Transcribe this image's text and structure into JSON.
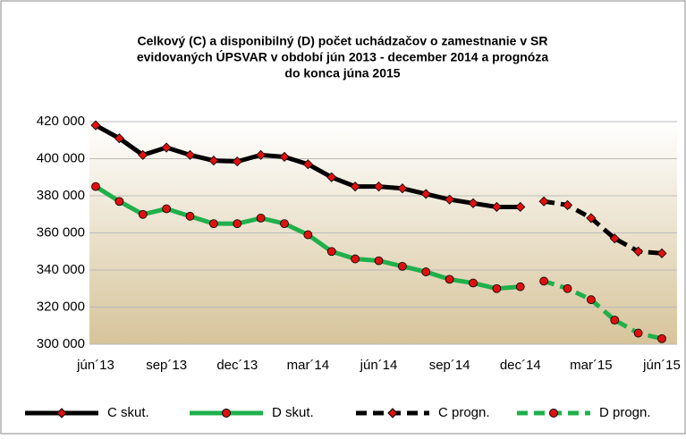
{
  "chart_data": {
    "type": "line",
    "title_lines": [
      "Celkový (C) a disponibilný (D) počet uchádzačov o zamestnanie v SR",
      "evidovaných ÚPSVAR v období jún 2013 - december 2014 a prognóza",
      "do konca júna 2015"
    ],
    "categories": [
      "jún´13",
      null,
      null,
      "sep´13",
      null,
      null,
      "dec´13",
      null,
      null,
      "mar´14",
      null,
      null,
      "jún´14",
      null,
      null,
      "sep´14",
      null,
      null,
      "dec´14",
      null,
      null,
      "mar´15",
      null,
      null,
      "jún´15"
    ],
    "ylim": [
      300000,
      420000
    ],
    "yticks": [
      {
        "value": 300000,
        "label": "300 000"
      },
      {
        "value": 320000,
        "label": "320 000"
      },
      {
        "value": 340000,
        "label": "340 000"
      },
      {
        "value": 360000,
        "label": "360 000"
      },
      {
        "value": 380000,
        "label": "380 000"
      },
      {
        "value": 400000,
        "label": "400 000"
      },
      {
        "value": 420000,
        "label": "420 000"
      }
    ],
    "grid": true,
    "series": [
      {
        "name": "C skut.",
        "color": "#000000",
        "dashed": false,
        "marker": "diamond",
        "values": [
          418000,
          411000,
          402000,
          406000,
          402000,
          399000,
          398500,
          402000,
          401000,
          397000,
          390000,
          385000,
          385000,
          384000,
          381000,
          378000,
          376000,
          374000,
          374000,
          null,
          null,
          null,
          null,
          null,
          null
        ]
      },
      {
        "name": "D skut.",
        "color": "#1fb04b",
        "dashed": false,
        "marker": "circle",
        "values": [
          385000,
          377000,
          370000,
          373000,
          369000,
          365000,
          365000,
          368000,
          365000,
          359000,
          350000,
          346000,
          345000,
          342000,
          339000,
          335000,
          333000,
          330000,
          331000,
          null,
          null,
          null,
          null,
          null,
          null
        ]
      },
      {
        "name": "C progn.",
        "color": "#000000",
        "dashed": true,
        "marker": "diamond",
        "values": [
          null,
          null,
          null,
          null,
          null,
          null,
          null,
          null,
          null,
          null,
          null,
          null,
          null,
          null,
          null,
          null,
          null,
          null,
          null,
          377000,
          375000,
          368000,
          357000,
          350000,
          349000
        ]
      },
      {
        "name": "D progn.",
        "color": "#1fb04b",
        "dashed": true,
        "marker": "circle",
        "values": [
          null,
          null,
          null,
          null,
          null,
          null,
          null,
          null,
          null,
          null,
          null,
          null,
          null,
          null,
          null,
          null,
          null,
          null,
          null,
          334000,
          330000,
          324000,
          313000,
          306000,
          303000
        ]
      }
    ],
    "legend": "bottom"
  }
}
